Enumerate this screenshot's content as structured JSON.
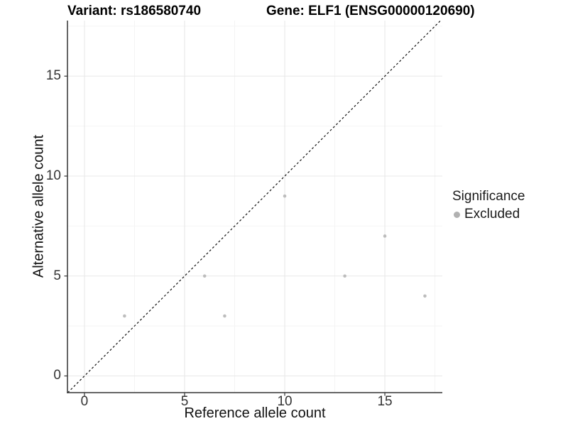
{
  "header": {
    "variant_title": "Variant: rs186580740",
    "gene_title": "Gene: ELF1 (ENSG00000120690)"
  },
  "legend": {
    "title": "Significance",
    "position": "right",
    "items": [
      {
        "label": "Excluded",
        "color": "#b1b1b1"
      }
    ]
  },
  "chart_data": {
    "type": "scatter",
    "title_left": "Variant: rs186580740",
    "title_right": "Gene: ELF1 (ENSG00000120690)",
    "xlabel": "Reference allele count",
    "ylabel": "Alternative allele count",
    "xlim": [
      -0.85,
      17.87
    ],
    "ylim": [
      -0.835,
      17.78
    ],
    "x_ticks": [
      0,
      5,
      10,
      15
    ],
    "y_ticks": [
      0,
      5,
      10,
      15
    ],
    "x_minor_ticks": [
      2.5,
      7.5,
      12.5,
      17.5
    ],
    "y_minor_ticks": [
      2.5,
      7.5,
      12.5,
      17.5
    ],
    "grid": true,
    "series": [
      {
        "name": "Excluded",
        "color": "#bdbdbd",
        "points": [
          {
            "x": 2,
            "y": 3
          },
          {
            "x": 6,
            "y": 5
          },
          {
            "x": 7,
            "y": 3
          },
          {
            "x": 10,
            "y": 9
          },
          {
            "x": 13,
            "y": 5
          },
          {
            "x": 15,
            "y": 7
          },
          {
            "x": 17,
            "y": 4
          }
        ]
      }
    ],
    "reference_line": {
      "kind": "identity",
      "style": "dashed",
      "color": "#111111"
    },
    "colors": {
      "grid_major": "#e8e8e8",
      "grid_minor": "#f4f4f4",
      "axis_line": "#333333",
      "tick_label": "#333333"
    }
  }
}
